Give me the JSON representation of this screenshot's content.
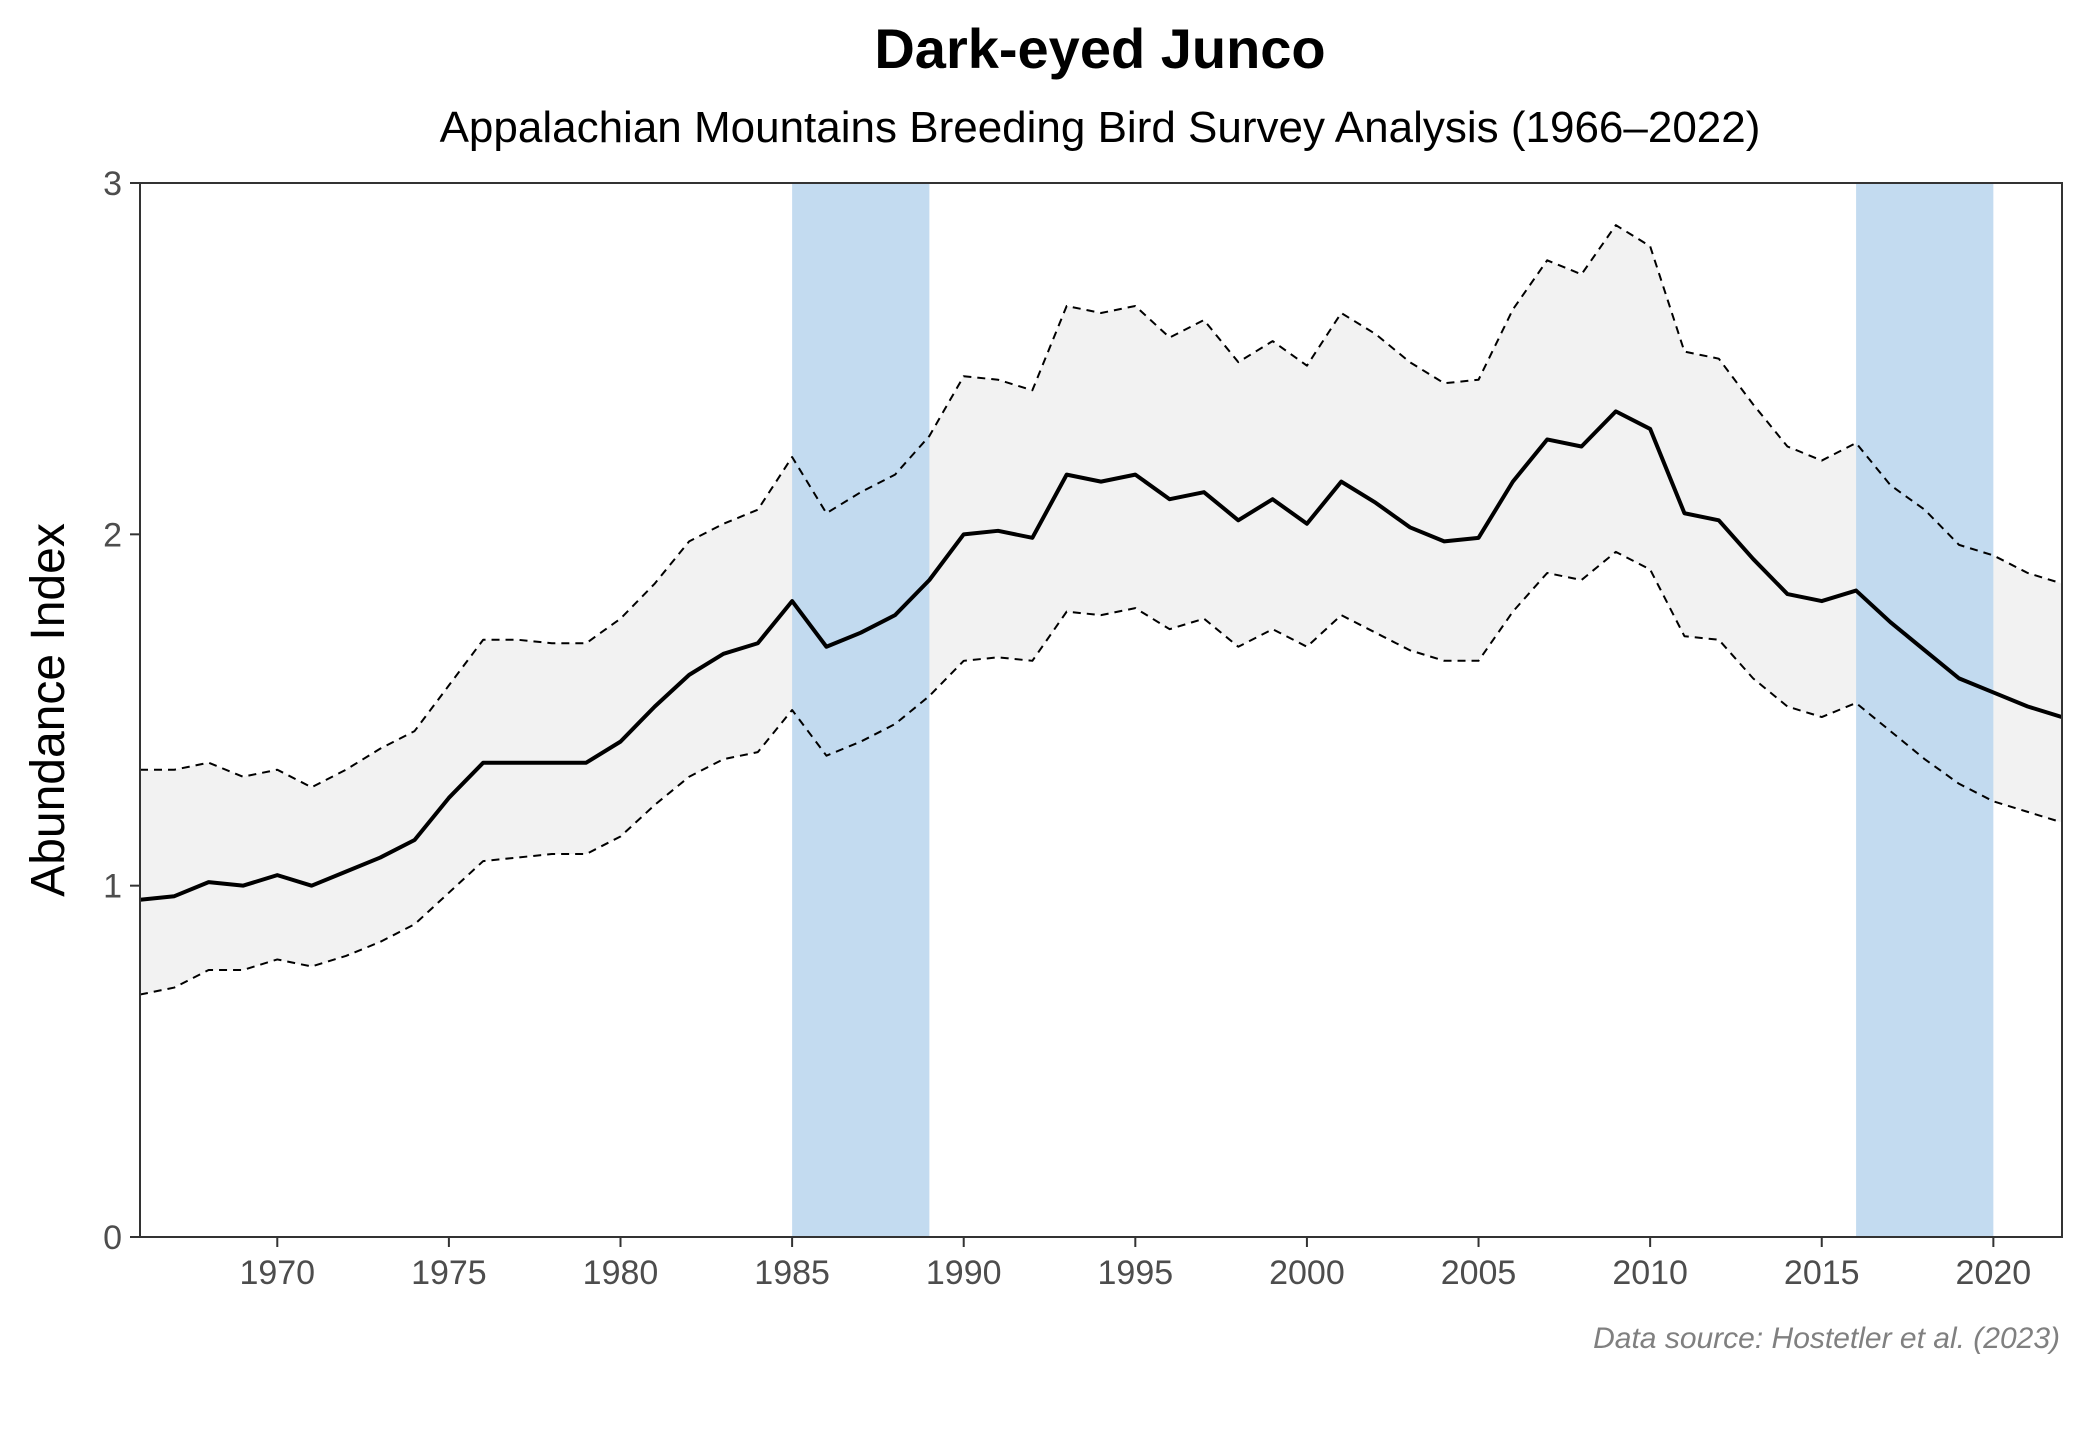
{
  "chart_data": {
    "type": "line",
    "title": "Dark-eyed Junco",
    "subtitle": "Appalachian Mountains Breeding Bird Survey Analysis (1966–2022)",
    "xlabel": "",
    "ylabel": "Abundance Index",
    "caption": "Data source: Hostetler et al. (2023)",
    "xlim": [
      1966,
      2022
    ],
    "ylim": [
      0,
      3
    ],
    "x_ticks": [
      1970,
      1975,
      1980,
      1985,
      1990,
      1995,
      2000,
      2005,
      2010,
      2015,
      2020
    ],
    "y_ticks": [
      0,
      1,
      2,
      3
    ],
    "grid": false,
    "shaded_periods": [
      {
        "start": 1985,
        "end": 1989,
        "color": "#bdd7ee"
      },
      {
        "start": 2016,
        "end": 2020,
        "color": "#bdd7ee"
      }
    ],
    "ci_fill_color": "#f2f2f2",
    "x": [
      1966,
      1967,
      1968,
      1969,
      1970,
      1971,
      1972,
      1973,
      1974,
      1975,
      1976,
      1977,
      1978,
      1979,
      1980,
      1981,
      1982,
      1983,
      1984,
      1985,
      1986,
      1987,
      1988,
      1989,
      1990,
      1991,
      1992,
      1993,
      1994,
      1995,
      1996,
      1997,
      1998,
      1999,
      2000,
      2001,
      2002,
      2003,
      2004,
      2005,
      2006,
      2007,
      2008,
      2009,
      2010,
      2011,
      2012,
      2013,
      2014,
      2015,
      2016,
      2017,
      2018,
      2019,
      2020,
      2021,
      2022
    ],
    "series": [
      {
        "role": "index",
        "style": "solid",
        "color": "#000000",
        "values": [
          0.96,
          0.97,
          1.01,
          1.0,
          1.03,
          1.0,
          1.04,
          1.08,
          1.13,
          1.25,
          1.35,
          1.35,
          1.35,
          1.35,
          1.41,
          1.51,
          1.6,
          1.66,
          1.69,
          1.81,
          1.68,
          1.72,
          1.77,
          1.87,
          2.0,
          2.01,
          1.99,
          2.17,
          2.15,
          2.17,
          2.1,
          2.12,
          2.04,
          2.1,
          2.03,
          2.15,
          2.09,
          2.02,
          1.98,
          1.99,
          2.15,
          2.27,
          2.25,
          2.35,
          2.3,
          2.06,
          2.04,
          1.93,
          1.83,
          1.81,
          1.84,
          1.75,
          1.67,
          1.59,
          1.55,
          1.51,
          1.48
        ]
      },
      {
        "role": "upper",
        "style": "dashed",
        "color": "#000000",
        "values": [
          1.33,
          1.33,
          1.35,
          1.31,
          1.33,
          1.28,
          1.33,
          1.39,
          1.44,
          1.57,
          1.7,
          1.7,
          1.69,
          1.69,
          1.76,
          1.86,
          1.98,
          2.03,
          2.07,
          2.22,
          2.06,
          2.12,
          2.17,
          2.28,
          2.45,
          2.44,
          2.41,
          2.65,
          2.63,
          2.65,
          2.56,
          2.61,
          2.49,
          2.55,
          2.48,
          2.63,
          2.57,
          2.49,
          2.43,
          2.44,
          2.64,
          2.78,
          2.74,
          2.88,
          2.82,
          2.52,
          2.5,
          2.37,
          2.25,
          2.21,
          2.26,
          2.14,
          2.07,
          1.97,
          1.94,
          1.89,
          1.86
        ]
      },
      {
        "role": "lower",
        "style": "dashed",
        "color": "#000000",
        "values": [
          0.69,
          0.71,
          0.76,
          0.76,
          0.79,
          0.77,
          0.8,
          0.84,
          0.89,
          0.98,
          1.07,
          1.08,
          1.09,
          1.09,
          1.14,
          1.23,
          1.31,
          1.36,
          1.38,
          1.5,
          1.37,
          1.41,
          1.46,
          1.54,
          1.64,
          1.65,
          1.64,
          1.78,
          1.77,
          1.79,
          1.73,
          1.76,
          1.68,
          1.73,
          1.68,
          1.77,
          1.72,
          1.67,
          1.64,
          1.64,
          1.78,
          1.89,
          1.87,
          1.95,
          1.9,
          1.71,
          1.7,
          1.59,
          1.51,
          1.48,
          1.52,
          1.44,
          1.36,
          1.29,
          1.24,
          1.21,
          1.18
        ]
      }
    ]
  }
}
